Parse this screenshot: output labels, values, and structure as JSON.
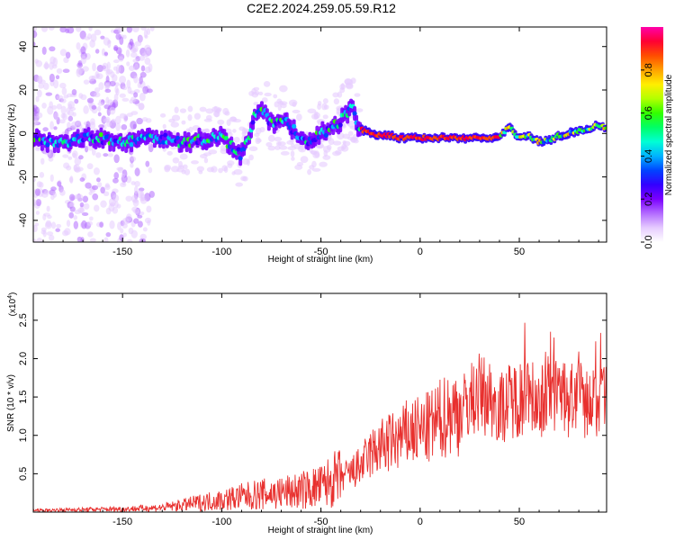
{
  "title": "C2E2.2024.259.05.59.R12",
  "chart_data": [
    {
      "type": "heatmap",
      "xlabel": "Height of straight line (km)",
      "ylabel": "Frequency (Hz)",
      "xlim": [
        -195,
        94
      ],
      "ylim": [
        -50,
        49
      ],
      "xticks": [
        -150,
        -100,
        -50,
        0,
        50
      ],
      "yticks": [
        -40,
        -20,
        0,
        20,
        40
      ],
      "colorbar": {
        "label": "Normalized spectral amplitude",
        "ticks": [
          0.0,
          0.2,
          0.4,
          0.6,
          0.8
        ],
        "range": [
          0,
          1
        ],
        "colors": [
          "#ffffff",
          "#e6ccff",
          "#b36bff",
          "#7b00ff",
          "#3300ff",
          "#0044ff",
          "#00b3ff",
          "#00ffd5",
          "#00ff66",
          "#33ff00",
          "#b3ff00",
          "#ffee00",
          "#ffa200",
          "#ff4d00",
          "#ff0033",
          "#ff00aa"
        ]
      },
      "centerline": {
        "x": [
          -195,
          -180,
          -165,
          -150,
          -140,
          -130,
          -120,
          -110,
          -100,
          -95,
          -90,
          -87,
          -84,
          -80,
          -75,
          -70,
          -65,
          -60,
          -55,
          -50,
          -45,
          -40,
          -37,
          -34,
          -32,
          -30,
          -25,
          -20,
          -15,
          -10,
          -5,
          0,
          10,
          20,
          30,
          38,
          42,
          45,
          50,
          55,
          60,
          65,
          70,
          75,
          80,
          85,
          90,
          94
        ],
        "y": [
          -3,
          -4,
          -2,
          -4,
          -3,
          -2,
          -4,
          -3,
          -2,
          -6,
          -10,
          -4,
          8,
          12,
          5,
          7,
          3,
          -2,
          -4,
          0,
          2,
          6,
          9,
          12,
          5,
          2,
          0,
          -1,
          -1,
          -2,
          -2,
          -2,
          -2,
          -2,
          -2,
          -2,
          0,
          3,
          -2,
          -1,
          -4,
          -3,
          -1,
          0,
          1,
          2,
          4,
          2
        ]
      }
    },
    {
      "type": "line",
      "xlabel": "Height of straight line (km)",
      "ylabel": "SNR (10 * v/v)",
      "y_multiplier": "(x10",
      "y_multiplier_exp": "4",
      "xlim": [
        -195,
        94
      ],
      "ylim": [
        0,
        2.85
      ],
      "xticks": [
        -150,
        -100,
        -50,
        0,
        50
      ],
      "yticks": [
        0.5,
        1.0,
        1.5,
        2.0,
        2.5
      ],
      "series": [
        {
          "color": "#e8302e",
          "x": [
            -195,
            -175,
            -150,
            -130,
            -120,
            -110,
            -100,
            -90,
            -80,
            -70,
            -60,
            -50,
            -45,
            -40,
            -35,
            -30,
            -25,
            -20,
            -15,
            -10,
            -5,
            0,
            5,
            10,
            15,
            20,
            25,
            30,
            35,
            40,
            45,
            50,
            55,
            60,
            65,
            70,
            75,
            80,
            85,
            90,
            94
          ],
          "y": [
            0.02,
            0.03,
            0.04,
            0.06,
            0.09,
            0.13,
            0.16,
            0.2,
            0.23,
            0.25,
            0.28,
            0.33,
            0.4,
            0.45,
            0.5,
            0.6,
            0.75,
            0.85,
            0.9,
            0.95,
            1.05,
            1.05,
            1.1,
            1.2,
            1.3,
            1.3,
            1.45,
            1.55,
            1.5,
            1.35,
            1.45,
            1.5,
            1.55,
            1.45,
            1.6,
            1.55,
            1.45,
            1.55,
            1.4,
            1.4,
            1.45
          ]
        }
      ]
    }
  ]
}
